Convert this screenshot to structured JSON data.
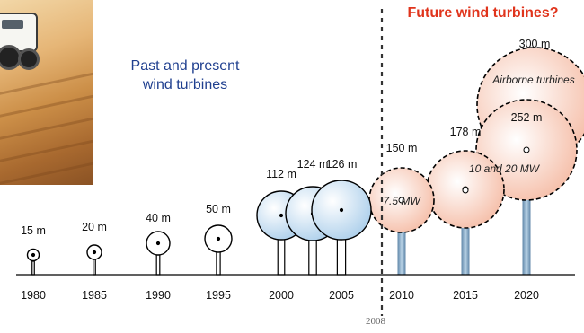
{
  "headings": {
    "past": [
      "Past and present",
      "wind turbines"
    ],
    "future": "Future wind turbines?"
  },
  "photo": {
    "icon": "desert-vehicle-photo"
  },
  "divider": {
    "label": "2008"
  },
  "turbines": [
    {
      "year": "1980",
      "size": "15 m",
      "era": "past"
    },
    {
      "year": "1985",
      "size": "20 m",
      "era": "past"
    },
    {
      "year": "1990",
      "size": "40 m",
      "era": "past"
    },
    {
      "year": "1995",
      "size": "50 m",
      "era": "past"
    },
    {
      "year": "2000",
      "size": "112 m",
      "era": "past"
    },
    {
      "year": "",
      "size": "124 m",
      "era": "past"
    },
    {
      "year": "2005",
      "size": "126 m",
      "era": "past"
    },
    {
      "year": "2010",
      "size": "150 m",
      "era": "future",
      "capacity": "7.5 MW"
    },
    {
      "year": "2015",
      "size": "178 m",
      "era": "future"
    },
    {
      "year": "2020",
      "size": "252 m",
      "era": "future"
    },
    {
      "year": "",
      "size": "300 m",
      "era": "future",
      "capacity": "Airborne turbines"
    }
  ],
  "capacity_note": "10 and 20 MW",
  "colors": {
    "past_fill": "#cfe4f6",
    "future_fill": "#f9d2c2",
    "past_heading": "#1f3f8f",
    "future_heading": "#e0341c",
    "tower_future": "#7fa4c4"
  }
}
